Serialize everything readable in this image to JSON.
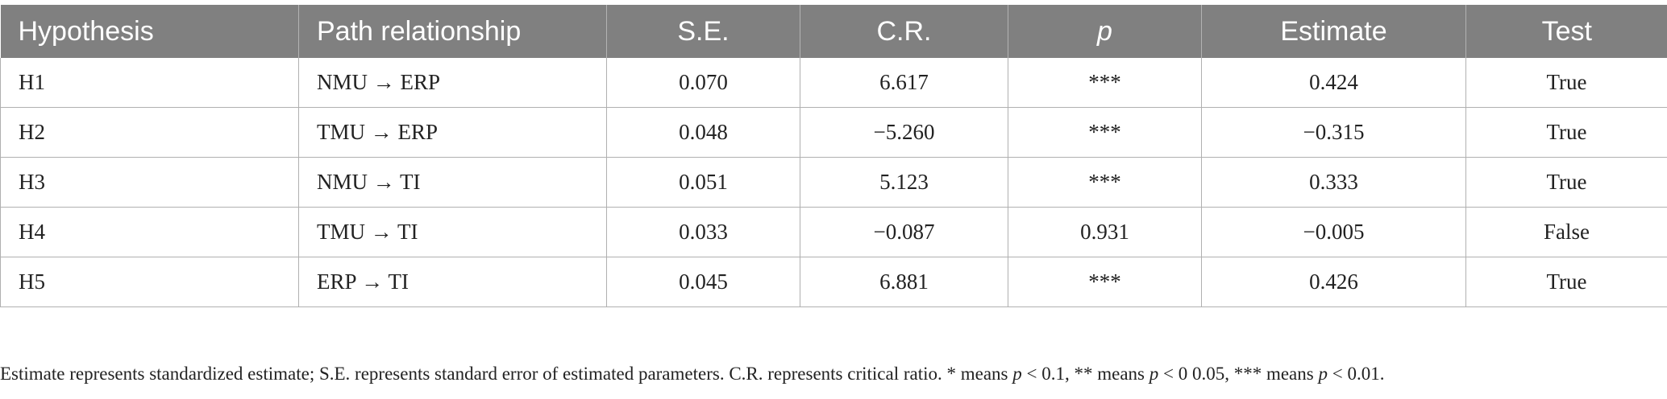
{
  "table": {
    "headers": [
      "Hypothesis",
      "Path relationship",
      "S.E.",
      "C.R.",
      "p",
      "Estimate",
      "Test"
    ],
    "rows": [
      [
        "H1",
        "NMU → ERP",
        "0.070",
        "6.617",
        "***",
        "0.424",
        "True"
      ],
      [
        "H2",
        "TMU → ERP",
        "0.048",
        "−5.260",
        "***",
        "−0.315",
        "True"
      ],
      [
        "H3",
        "NMU → TI",
        "0.051",
        "5.123",
        "***",
        "0.333",
        "True"
      ],
      [
        "H4",
        "TMU → TI",
        "0.033",
        "−0.087",
        "0.931",
        "−0.005",
        "False"
      ],
      [
        "H5",
        "ERP → TI",
        "0.045",
        "6.881",
        "***",
        "0.426",
        "True"
      ]
    ]
  },
  "footnote": {
    "part1": "Estimate represents standardized estimate; S.E. represents standard error of estimated parameters. C.R. represents critical ratio. * means ",
    "p1": "p",
    "part2": " < 0.1, ** means ",
    "p2": "p",
    "part3": " < 0 0.05, *** means ",
    "p3": "p",
    "part4": " < 0.01."
  }
}
